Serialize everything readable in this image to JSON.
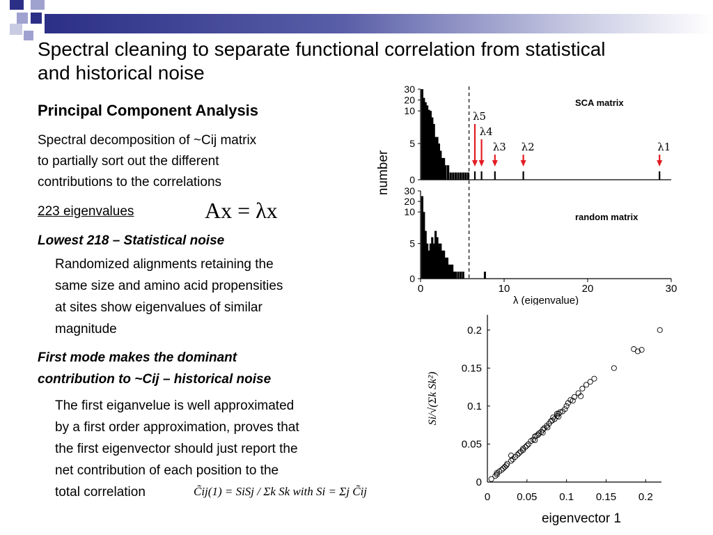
{
  "slide": {
    "title": "Spectral cleaning to separate functional correlation from statistical and historical noise",
    "subtitle": "Principal Component Analysis",
    "para1": [
      "Spectral decomposition of ~Cij matrix",
      "to partially sort out the different",
      "contributions to the correlations"
    ],
    "eig_count": "223 eigenvalues",
    "eq1": "Ax = λx",
    "h_low": "Lowest 218 – Statistical noise",
    "para2": [
      "Randomized alignments retaining the",
      "same size and amino acid propensities",
      "at sites show eigenvalues of similar",
      "magnitude"
    ],
    "h_first": [
      "First mode makes the dominant",
      "contribution to ~Cij – historical noise"
    ],
    "para3": [
      "The first eiganvelue is well approximated",
      "by a first order approximation, proves that",
      "the first eigenvector should just report the",
      "net contribution of each position to the",
      "total correlation"
    ],
    "eq2": "C̃ij(1) = SiSj / Σk Sk  with  Si = Σj C̃ij",
    "colors": {
      "title_bar_dark": "#2c2f86",
      "title_bar_light": "#c9cbe3",
      "arrow": "#e31b23",
      "bars": "#000000"
    }
  },
  "chart_data": [
    {
      "type": "bar",
      "panel": "top",
      "label": "SCA matrix",
      "ylabel": "number",
      "xlim": [
        0,
        30
      ],
      "yticks": [
        "30",
        "20",
        "10",
        "5",
        "0"
      ],
      "cutoff_x": 5.8,
      "eigen_labels": [
        "λ5",
        "λ4",
        "λ3",
        "λ2",
        "λ1"
      ],
      "eigen_values": [
        6.5,
        7.3,
        8.9,
        12.3,
        28.6
      ],
      "hist_x": [
        0.2,
        0.4,
        0.6,
        0.8,
        1.0,
        1.2,
        1.4,
        1.6,
        1.8,
        2.0,
        2.2,
        2.4,
        2.6,
        2.8,
        3.0,
        3.3,
        3.6,
        3.9,
        4.2,
        4.5,
        4.8,
        5.1,
        5.4,
        5.7
      ],
      "hist_y": [
        30,
        22,
        18,
        15,
        11,
        10,
        9,
        8,
        6,
        6,
        5,
        4,
        3,
        3,
        2,
        2,
        1,
        1,
        1,
        1,
        1,
        1,
        1,
        1
      ]
    },
    {
      "type": "bar",
      "panel": "bottom",
      "label": "random matrix",
      "xlabel": "λ (eigenvalue)",
      "xlim": [
        0,
        30
      ],
      "xticks": [
        "0",
        "10",
        "20",
        "30"
      ],
      "yticks": [
        "30",
        "20",
        "10",
        "5",
        "0"
      ],
      "cutoff_x": 5.8,
      "outlier_x": 7.7,
      "hist_x": [
        0.2,
        0.4,
        0.6,
        0.8,
        1.0,
        1.2,
        1.4,
        1.6,
        1.8,
        2.0,
        2.2,
        2.4,
        2.6,
        2.8,
        3.0,
        3.2,
        3.4,
        3.6,
        3.8,
        4.0,
        4.2,
        4.5,
        4.8,
        5.1
      ],
      "hist_y": [
        25,
        10,
        7,
        5,
        4,
        5,
        6,
        5,
        7,
        6,
        5,
        5,
        4,
        4,
        3,
        3,
        2,
        2,
        2,
        1,
        1,
        1,
        1,
        1
      ]
    },
    {
      "type": "scatter",
      "xlabel": "eigenvector 1",
      "ylabel": "Si/√(Σk Sk²)",
      "xlim": [
        0,
        0.22
      ],
      "ylim": [
        0,
        0.22
      ],
      "xticks": [
        "0",
        "0.05",
        "0.1",
        "0.15",
        "0.2"
      ],
      "yticks": [
        "0",
        "0.05",
        "0.1",
        "0.15",
        "0.2"
      ],
      "points": [
        [
          0.005,
          0.004
        ],
        [
          0.01,
          0.008
        ],
        [
          0.012,
          0.012
        ],
        [
          0.015,
          0.014
        ],
        [
          0.02,
          0.018
        ],
        [
          0.022,
          0.02
        ],
        [
          0.025,
          0.024
        ],
        [
          0.03,
          0.028
        ],
        [
          0.032,
          0.03
        ],
        [
          0.035,
          0.033
        ],
        [
          0.038,
          0.036
        ],
        [
          0.04,
          0.038
        ],
        [
          0.042,
          0.04
        ],
        [
          0.045,
          0.044
        ],
        [
          0.048,
          0.046
        ],
        [
          0.05,
          0.048
        ],
        [
          0.052,
          0.05
        ],
        [
          0.055,
          0.054
        ],
        [
          0.058,
          0.056
        ],
        [
          0.06,
          0.06
        ],
        [
          0.062,
          0.061
        ],
        [
          0.065,
          0.064
        ],
        [
          0.068,
          0.066
        ],
        [
          0.07,
          0.069
        ],
        [
          0.072,
          0.071
        ],
        [
          0.075,
          0.074
        ],
        [
          0.078,
          0.077
        ],
        [
          0.08,
          0.08
        ],
        [
          0.082,
          0.081
        ],
        [
          0.085,
          0.083
        ],
        [
          0.088,
          0.087
        ],
        [
          0.09,
          0.09
        ],
        [
          0.092,
          0.092
        ],
        [
          0.095,
          0.093
        ],
        [
          0.098,
          0.096
        ],
        [
          0.1,
          0.1
        ],
        [
          0.102,
          0.104
        ],
        [
          0.105,
          0.108
        ],
        [
          0.108,
          0.107
        ],
        [
          0.11,
          0.112
        ],
        [
          0.115,
          0.117
        ],
        [
          0.118,
          0.113
        ],
        [
          0.12,
          0.123
        ],
        [
          0.125,
          0.128
        ],
        [
          0.13,
          0.132
        ],
        [
          0.135,
          0.136
        ],
        [
          0.16,
          0.15
        ],
        [
          0.185,
          0.175
        ],
        [
          0.19,
          0.172
        ],
        [
          0.195,
          0.174
        ],
        [
          0.218,
          0.2
        ],
        [
          0.03,
          0.035
        ],
        [
          0.06,
          0.055
        ],
        [
          0.07,
          0.065
        ],
        [
          0.083,
          0.085
        ],
        [
          0.088,
          0.09
        ],
        [
          0.09,
          0.086
        ],
        [
          0.012,
          0.01
        ],
        [
          0.018,
          0.016
        ],
        [
          0.024,
          0.022
        ],
        [
          0.045,
          0.042
        ],
        [
          0.064,
          0.062
        ],
        [
          0.076,
          0.072
        ]
      ]
    }
  ]
}
